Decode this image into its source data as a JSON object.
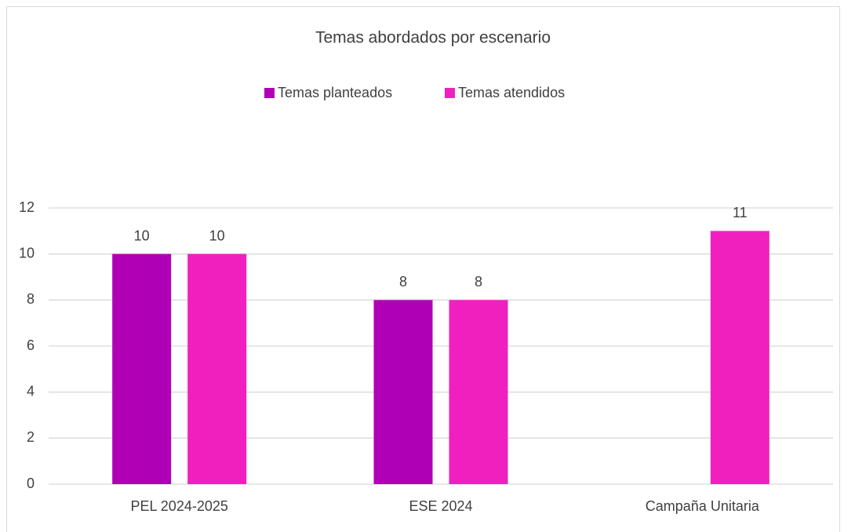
{
  "chart_data": {
    "type": "bar",
    "title": "Temas abordados por escenario",
    "categories": [
      "PEL 2024-2025",
      "ESE 2024",
      "Campaña Unitaria"
    ],
    "series": [
      {
        "name": "Temas planteados",
        "color": "#b000b5",
        "values": [
          10,
          8,
          null
        ]
      },
      {
        "name": "Temas atendidos",
        "color": "#f020be",
        "values": [
          10,
          8,
          11
        ]
      }
    ],
    "ylim": [
      0,
      12
    ],
    "yticks": [
      0,
      2,
      4,
      6,
      8,
      10,
      12
    ],
    "grid": true,
    "legend": "top"
  }
}
